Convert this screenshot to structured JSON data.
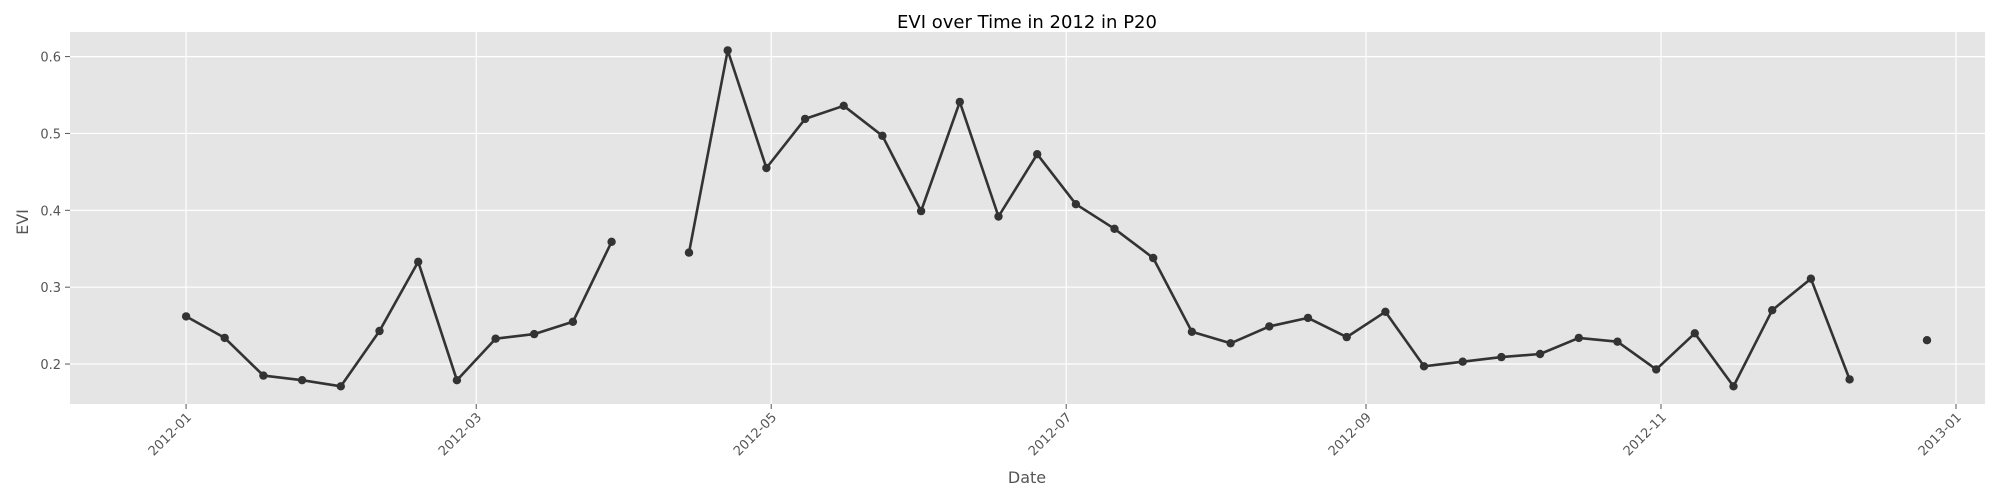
{
  "chart_data": {
    "type": "line",
    "title": "EVI over Time in 2012 in P20",
    "xlabel": "Date",
    "ylabel": "EVI",
    "xlim": [
      "2011-12-08",
      "2013-01-07"
    ],
    "ylim": [
      0.148,
      0.632
    ],
    "x_ticks": [
      "2012-01-01",
      "2012-03-01",
      "2012-05-01",
      "2012-07-01",
      "2012-09-01",
      "2012-11-01",
      "2013-01-01"
    ],
    "x_tick_labels": [
      "2012-01",
      "2012-03",
      "2012-05",
      "2012-07",
      "2012-09",
      "2012-11",
      "2013-01"
    ],
    "y_ticks": [
      0.2,
      0.3,
      0.4,
      0.5,
      0.6
    ],
    "y_tick_labels": [
      "0.2",
      "0.3",
      "0.4",
      "0.5",
      "0.6"
    ],
    "grid": true,
    "series_color": "#333333",
    "background_color": "#e5e5e5",
    "grid_color": "#ffffff",
    "series": [
      {
        "x": [
          "2012-01-01",
          "2012-01-09",
          "2012-01-17",
          "2012-01-25",
          "2012-02-02",
          "2012-02-10",
          "2012-02-18",
          "2012-02-26",
          "2012-03-05",
          "2012-03-13",
          "2012-03-21",
          "2012-03-29",
          "2012-04-06",
          "2012-04-14",
          "2012-04-22",
          "2012-04-30",
          "2012-05-08",
          "2012-05-16",
          "2012-05-24",
          "2012-06-01",
          "2012-06-09",
          "2012-06-17",
          "2012-06-25",
          "2012-07-03",
          "2012-07-11",
          "2012-07-19",
          "2012-07-27",
          "2012-08-04",
          "2012-08-12",
          "2012-08-20",
          "2012-08-28",
          "2012-09-05",
          "2012-09-13",
          "2012-09-21",
          "2012-09-29",
          "2012-10-07",
          "2012-10-15",
          "2012-10-23",
          "2012-10-31",
          "2012-11-08",
          "2012-11-16",
          "2012-11-24",
          "2012-12-02",
          "2012-12-10",
          "2012-12-18",
          "2012-12-26"
        ],
        "values": [
          0.262,
          0.234,
          0.185,
          0.179,
          0.171,
          0.243,
          0.333,
          0.179,
          0.233,
          0.239,
          0.255,
          0.359,
          null,
          0.345,
          0.608,
          0.455,
          0.519,
          0.536,
          0.497,
          0.399,
          0.541,
          0.392,
          0.473,
          0.408,
          0.376,
          0.338,
          0.242,
          0.227,
          0.249,
          0.26,
          0.235,
          0.268,
          0.197,
          0.203,
          0.209,
          0.213,
          0.234,
          0.229,
          0.193,
          0.24,
          0.171,
          0.27,
          0.311,
          0.18,
          null,
          0.231
        ]
      }
    ]
  }
}
